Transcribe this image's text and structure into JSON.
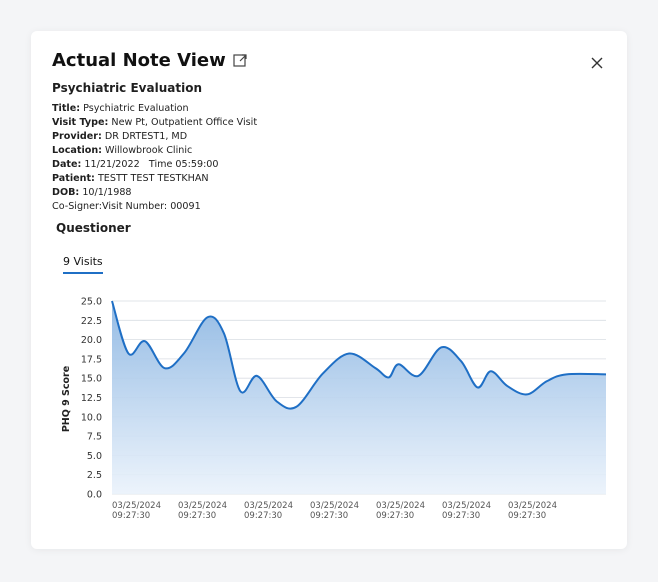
{
  "modal": {
    "title": "Actual Note View",
    "subtitle": "Psychiatric Evaluation",
    "icons": {
      "expand": "external-link-icon",
      "close": "close-icon"
    }
  },
  "details": {
    "title_label": "Title:",
    "title_value": " Psychiatric Evaluation",
    "visit_type_label": "Visit Type:",
    "visit_type_value": " New Pt, Outpatient Office Visit",
    "provider_label": "Provider:",
    "provider_value": " DR DRTEST1, MD",
    "location_label": "Location:",
    "location_value": " Willowbrook Clinic",
    "date_label": "Date:",
    "date_value": " 11/21/2022",
    "time_label": "Time",
    "time_value": " 05:59:00",
    "patient_label": "Patient:",
    "patient_value": " TESTT TEST TESTKHAN",
    "dob_label": "DOB:",
    "dob_value": " 10/1/1988",
    "cosigner_line": "Co-Signer:Visit Number: 00091"
  },
  "section": {
    "questioner": "Questioner",
    "tab_label": "9 Visits"
  },
  "colors": {
    "line": "#1f6fc5",
    "fill_top": "#8fb8e3",
    "fill_bottom": "#eaf2fb",
    "grid": "#d9dde3",
    "accent": "#1f6fc5"
  },
  "chart_data": {
    "type": "area",
    "ylabel": "PHQ 9 Score",
    "ylim": [
      0,
      25
    ],
    "y_ticks": [
      "0.0",
      "2.5",
      "5.0",
      "7.5",
      "10.0",
      "12.5",
      "15.0",
      "17.5",
      "20.0",
      "22.5",
      "25.0"
    ],
    "x_tick_labels": [
      [
        "03/25/2024",
        "09:27:30"
      ],
      [
        "03/25/2024",
        "09:27:30"
      ],
      [
        "03/25/2024",
        "09:27:30"
      ],
      [
        "03/25/2024",
        "09:27:30"
      ],
      [
        "03/25/2024",
        "09:27:30"
      ],
      [
        "03/25/2024",
        "09:27:30"
      ],
      [
        "03/25/2024",
        "09:27:30"
      ]
    ],
    "series": [
      {
        "x": [
          0,
          0.25,
          0.5,
          0.8,
          1.1,
          1.45,
          1.7,
          1.95,
          2.2,
          2.5,
          2.8,
          3.2,
          3.6,
          4.0,
          4.2,
          4.35,
          4.65,
          5.0,
          5.3,
          5.55,
          5.75,
          6.0,
          6.3,
          6.6,
          6.9,
          7.5
        ],
        "values": [
          25.0,
          18.2,
          19.8,
          16.3,
          18.3,
          22.9,
          20.8,
          13.3,
          15.3,
          12.0,
          11.3,
          15.6,
          18.2,
          16.3,
          15.1,
          16.8,
          15.3,
          19.0,
          17.2,
          13.8,
          15.9,
          14.0,
          12.9,
          14.6,
          15.5,
          15.5
        ]
      }
    ]
  }
}
